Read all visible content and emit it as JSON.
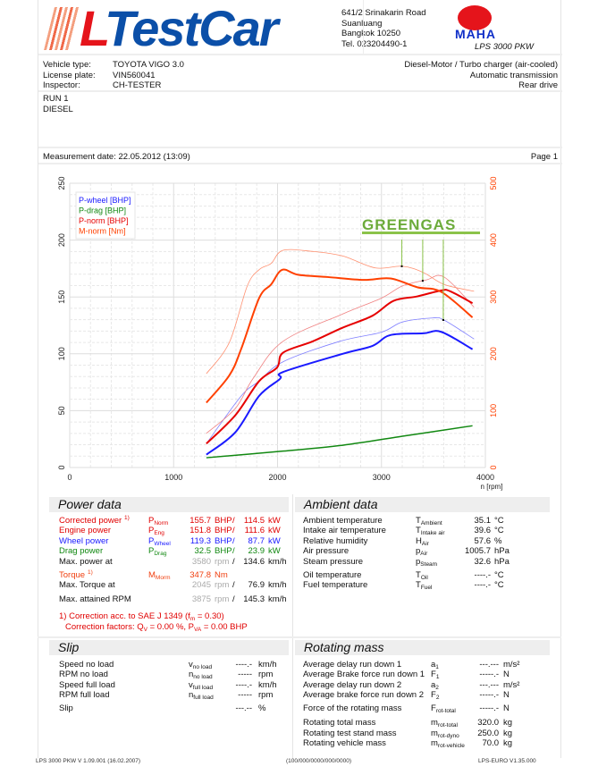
{
  "header": {
    "logo_text": "TestCar",
    "logo_letter": "L",
    "address": [
      "641/2 Srinakarin Road",
      "Suanluang",
      "Bangkok 10250",
      "Tel. 023204490-1"
    ],
    "maha_logo": "MAHA",
    "product": "LPS 3000 PKW"
  },
  "vehicle": {
    "rows": [
      {
        "label": "Vehicle type:",
        "value": "TOYOTA VIGO 3.0",
        "right": "Diesel-Motor / Turbo charger (air-cooled)"
      },
      {
        "label": "License plate:",
        "value": "VIN560041",
        "right": "Automatic transmission"
      },
      {
        "label": "Inspector:",
        "value": "CH-TESTER",
        "right": "Rear drive"
      }
    ]
  },
  "run": {
    "line1": "RUN 1",
    "line2": "DIESEL"
  },
  "measurement": {
    "date": "Measurement date: 22.05.2012 (13:09)",
    "page": "Page 1"
  },
  "chart_data": {
    "type": "line",
    "xlabel": "n [rpm]",
    "xlim": [
      0,
      4000
    ],
    "xticks": [
      "0",
      "1000",
      "2000",
      "3000",
      "4000"
    ],
    "ylim_left": [
      0,
      250
    ],
    "yticks_left": [
      "0",
      "50",
      "100",
      "150",
      "200",
      "250"
    ],
    "ylim_right": [
      0,
      500
    ],
    "yticks_right": [
      "0",
      "100",
      "200",
      "300",
      "400",
      "500"
    ],
    "grid": true,
    "legend_position": "top-left",
    "watermark": "GREENGAS",
    "series": [
      {
        "name": "P-wheel [BHP]",
        "color": "#1a1aff",
        "axis": "left",
        "width": 2,
        "x": [
          1315,
          1594,
          1823,
          2024,
          2053,
          2627,
          2914,
          3087,
          3403,
          3575,
          3876
        ],
        "y": [
          11.3,
          31,
          63,
          78,
          84,
          100,
          107,
          116.5,
          118,
          119.3,
          104
        ]
      },
      {
        "name": "P-drag [BHP]",
        "color": "#118811",
        "axis": "left",
        "width": 1.5,
        "x": [
          1315,
          2053,
          2627,
          3202,
          3876
        ],
        "y": [
          8.6,
          14.4,
          19.6,
          27.5,
          36.7
        ]
      },
      {
        "name": "P-norm [BHP]",
        "color": "#e60000",
        "axis": "left",
        "width": 2,
        "x": [
          1315,
          1594,
          1823,
          1996,
          2053,
          2340,
          2627,
          2914,
          3116,
          3345,
          3575,
          3661,
          3876
        ],
        "y": [
          21,
          46,
          76,
          88,
          101,
          111,
          123,
          133.5,
          146.6,
          150.5,
          155.7,
          155,
          144.5
        ]
      },
      {
        "name": "M-norm [Nm]",
        "color": "#ff4000",
        "axis": "right",
        "width": 2,
        "x": [
          1315,
          1536,
          1651,
          1823,
          1938,
          2045,
          2197,
          2484,
          2828,
          3087,
          3345,
          3575,
          3876
        ],
        "y": [
          114,
          162,
          209,
          298,
          322,
          347.8,
          339,
          335,
          330,
          332.5,
          317,
          309,
          264
        ]
      },
      {
        "color": "#8080ff",
        "axis": "left",
        "width": 0.8,
        "x": [
          1315,
          1651,
          1823,
          2053,
          2599,
          3000,
          3202,
          3489,
          3603,
          3891
        ],
        "y": [
          21,
          63,
          76,
          93,
          111,
          119,
          128,
          131.5,
          129.6,
          113
        ]
      },
      {
        "color": "#f08080",
        "axis": "left",
        "width": 0.8,
        "x": [
          1315,
          1594,
          1766,
          2053,
          2627,
          3000,
          3202,
          3432,
          3603,
          3891
        ],
        "y": [
          30,
          52,
          78.5,
          111,
          135,
          149,
          159.7,
          165,
          167.5,
          141
        ]
      },
      {
        "color": "#ff9070",
        "axis": "right",
        "width": 0.8,
        "x": [
          1315,
          1536,
          1708,
          1823,
          1938,
          2053,
          2340,
          2627,
          2943,
          3202,
          3403,
          3603,
          3891
        ],
        "y": [
          165,
          220,
          319,
          348,
          359,
          382,
          380,
          372,
          351,
          354,
          343,
          322,
          310
        ]
      }
    ],
    "markers_rpm": [
      3196,
      3397,
      3595
    ]
  },
  "power": {
    "title": "Power data",
    "rows": [
      {
        "label": "Corrected power",
        "note": "1)",
        "sym": "P",
        "sub": "Norm",
        "v1": "155.7",
        "u1": "BHP",
        "sep": "/",
        "v2": "114.5",
        "u2": "kW",
        "color": "#e00000"
      },
      {
        "label": "Engine power",
        "sym": "P",
        "sub": "Eng",
        "v1": "151.8",
        "u1": "BHP",
        "sep": "/",
        "v2": "111.6",
        "u2": "kW",
        "color": "#e00000"
      },
      {
        "label": "Wheel power",
        "sym": "P",
        "sub": "Wheel",
        "v1": "119.3",
        "u1": "BHP",
        "sep": "/",
        "v2": "87.7",
        "u2": "kW",
        "color": "#1a1aff"
      },
      {
        "label": "Drag power",
        "sym": "P",
        "sub": "Drag",
        "v1": "32.5",
        "u1": "BHP",
        "sep": "/",
        "v2": "23.9",
        "u2": "kW",
        "color": "#118811"
      },
      {
        "label": "Max. power at",
        "v1": "3580",
        "u1": "rpm",
        "sep": "/",
        "v2": "134.6",
        "u2": "km/h",
        "color": "#111"
      },
      {
        "label": "Torque",
        "note": "1)",
        "sym": "M",
        "sub": "Morm",
        "v1": "347.8",
        "u1": "Nm",
        "color": "#f04010"
      },
      {
        "label": "Max. Torque at",
        "v1": "2045",
        "u1": "rpm",
        "sep": "/",
        "v2": "76.9",
        "u2": "km/h",
        "color": "#111"
      },
      {
        "label": "Max. attained RPM",
        "v1": "3875",
        "u1": "rpm",
        "sep": "/",
        "v2": "145.3",
        "u2": "km/h",
        "color": "#111"
      }
    ],
    "footnote1": "1) Correction acc. to SAE J 1349 (f",
    "footnote1_sub": "m",
    "footnote1_end": " =  0.30)",
    "footnote2": "Correction factors: Q",
    "footnote2_sub": "V",
    "footnote2_mid": " =   0.00 %, P",
    "footnote2_sub2": "VA",
    "footnote2_end": " =   0.00 BHP"
  },
  "ambient": {
    "title": "Ambient data",
    "rows": [
      {
        "label": "Ambient temperature",
        "sym": "T",
        "sub": "Ambient",
        "v": "35.1",
        "u": "°C"
      },
      {
        "label": "Intake air temperature",
        "sym": "T",
        "sub": "Intake air",
        "v": "39.6",
        "u": "°C"
      },
      {
        "label": "Relative humidity",
        "sym": "H",
        "sub": "Air",
        "v": "57.6",
        "u": "%"
      },
      {
        "label": "Air pressure",
        "sym": "p",
        "sub": "Air",
        "v": "1005.7",
        "u": "hPa"
      },
      {
        "label": "Steam pressure",
        "sym": "p",
        "sub": "Steam",
        "v": "32.6",
        "u": "hPa"
      },
      {
        "label": "Oil temperature",
        "sym": "T",
        "sub": "Oil",
        "v": "----.-",
        "u": "°C"
      },
      {
        "label": "Fuel temperature",
        "sym": "T",
        "sub": "Fuel",
        "v": "----.-",
        "u": "°C"
      }
    ]
  },
  "slip": {
    "title": "Slip",
    "rows": [
      {
        "label": "Speed no load",
        "sym": "v",
        "sub": "no load",
        "v": "----.-",
        "u": "km/h"
      },
      {
        "label": "RPM no load",
        "sym": "n",
        "sub": "no load",
        "v": "-----",
        "u": "rpm"
      },
      {
        "label": "Speed full load",
        "sym": "v",
        "sub": "full load",
        "v": "----.-",
        "u": "km/h"
      },
      {
        "label": "RPM full load",
        "sym": "n",
        "sub": "full load",
        "v": "-----",
        "u": "rpm"
      },
      {
        "label": "Slip",
        "sym": "",
        "sub": "",
        "v": "---.--",
        "u": "%"
      }
    ]
  },
  "rotating": {
    "title": "Rotating mass",
    "rows": [
      {
        "label": "Average delay run down 1",
        "sym": "a",
        "sub": "1",
        "v": "---.---",
        "u": "m/s²"
      },
      {
        "label": "Average Brake force run down 1",
        "sym": "F",
        "sub": "1",
        "v": "-----.-",
        "u": "N"
      },
      {
        "label": "Average delay run down 2",
        "sym": "a",
        "sub": "2",
        "v": "---.---",
        "u": "m/s²"
      },
      {
        "label": "Average brake force run down 2",
        "sym": "F",
        "sub": "2",
        "v": "-----.-",
        "u": "N"
      },
      {
        "label": "Force of the rotating mass",
        "sym": "F",
        "sub": "rot-total",
        "v": "-----.-",
        "u": "N"
      },
      {
        "label": "Rotating total mass",
        "sym": "m",
        "sub": "rot-total",
        "v": "320.0",
        "u": "kg"
      },
      {
        "label": "Rotating test stand mass",
        "sym": "m",
        "sub": "rot-dyno",
        "v": "250.0",
        "u": "kg"
      },
      {
        "label": "Rotating vehicle mass",
        "sym": "m",
        "sub": "rot-vehicle",
        "v": "70.0",
        "u": "kg"
      }
    ]
  },
  "footer": {
    "left": "LPS 3000 PKW V 1.09.001 (16.02.2007)",
    "center": "(100/000/0000/000/0000)",
    "right": "LPS-EURO V1.35.000"
  }
}
